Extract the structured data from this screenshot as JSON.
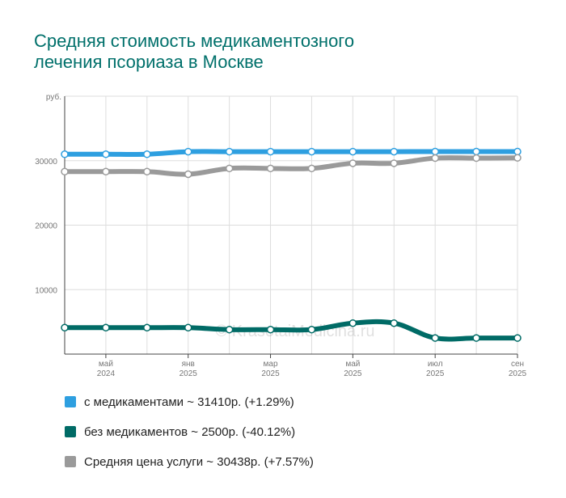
{
  "title_lines": [
    "Средняя стоимость медикаментозного",
    "лечения псориаза в Москве"
  ],
  "watermark": "© KrasotaiMedicina.ru",
  "chart_data": {
    "type": "line",
    "y_unit": "руб.",
    "ylim": [
      0,
      40000
    ],
    "y_ticks": [
      10000,
      20000,
      30000
    ],
    "x_points": [
      "2024-03",
      "2024-05",
      "2024-07",
      "2024-09",
      "2024-11",
      "2025-01",
      "2025-03",
      "2025-05",
      "2025-07",
      "2025-09",
      "2025-10",
      "2025-11"
    ],
    "x_labels": [
      {
        "month": "май",
        "year": "2024",
        "at": 1
      },
      {
        "month": "янв",
        "year": "2025",
        "at": 3
      },
      {
        "month": "мар",
        "year": "2025",
        "at": 5
      },
      {
        "month": "май",
        "year": "2025",
        "at": 7
      },
      {
        "month": "июл",
        "year": "2025",
        "at": 9
      },
      {
        "month": "сен",
        "year": "2025",
        "at": 11
      }
    ],
    "grid": true,
    "legend_position": "bottom",
    "series": [
      {
        "name": "с медикаментами ~ 31410р. (+1.29%)",
        "color": "#2e9fe0",
        "values": [
          31000,
          31000,
          31000,
          31400,
          31400,
          31400,
          31400,
          31400,
          31400,
          31410,
          31410,
          31410
        ]
      },
      {
        "name": "без медикаментов ~ 2500р. (-40.12%)",
        "color": "#006b66",
        "values": [
          4100,
          4100,
          4100,
          4100,
          3800,
          3800,
          3800,
          4800,
          4800,
          2500,
          2500,
          2500
        ]
      },
      {
        "name": "Средняя цена услуги ~ 30438р. (+7.57%)",
        "color": "#9a9a9a",
        "values": [
          28300,
          28300,
          28300,
          27900,
          28800,
          28800,
          28800,
          29600,
          29600,
          30400,
          30400,
          30438
        ]
      }
    ]
  }
}
